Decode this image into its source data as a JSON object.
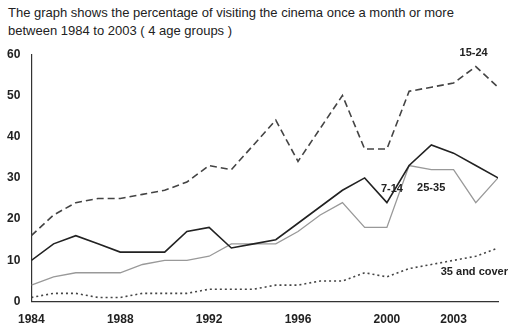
{
  "chart_data": {
    "type": "line",
    "title": "The graph shows the percentage of visiting the cinema once a month or more between 1984 to 2003 ( 4 age groups )",
    "x": [
      1984,
      1985,
      1986,
      1987,
      1988,
      1989,
      1990,
      1991,
      1992,
      1993,
      1994,
      1995,
      1996,
      1997,
      1998,
      1999,
      2000,
      2001,
      2002,
      2003,
      2004,
      2005
    ],
    "series": [
      {
        "name": "15-24",
        "color": "#444444",
        "line_style": "dashed",
        "values": [
          16,
          21,
          24,
          25,
          25,
          26,
          27,
          29,
          33,
          32,
          38,
          44,
          34,
          42,
          50,
          37,
          37,
          51,
          52,
          53,
          57,
          52
        ]
      },
      {
        "name": "7-14",
        "color": "#222222",
        "line_style": "solid",
        "values": [
          10,
          14,
          16,
          14,
          12,
          12,
          12,
          17,
          18,
          13,
          14,
          15,
          19,
          23,
          27,
          30,
          24,
          33,
          38,
          36,
          33,
          30
        ]
      },
      {
        "name": "25-35",
        "color": "#999999",
        "line_style": "solid",
        "values": [
          4,
          6,
          7,
          7,
          7,
          9,
          10,
          10,
          11,
          14,
          14,
          14,
          17,
          21,
          24,
          18,
          18,
          33,
          32,
          32,
          24,
          30
        ]
      },
      {
        "name": "35 and cover",
        "color": "#444444",
        "line_style": "dotted",
        "values": [
          1,
          2,
          2,
          1,
          1,
          2,
          2,
          2,
          3,
          3,
          3,
          4,
          4,
          5,
          5,
          7,
          6,
          8,
          9,
          10,
          11,
          13
        ]
      }
    ],
    "xlim": [
      1984,
      2005
    ],
    "xticks": [
      1984,
      1988,
      1992,
      1996,
      2000,
      2003
    ],
    "ylim": [
      0,
      60
    ],
    "yticks": [
      0,
      10,
      20,
      30,
      40,
      50,
      60
    ],
    "grid": false
  }
}
